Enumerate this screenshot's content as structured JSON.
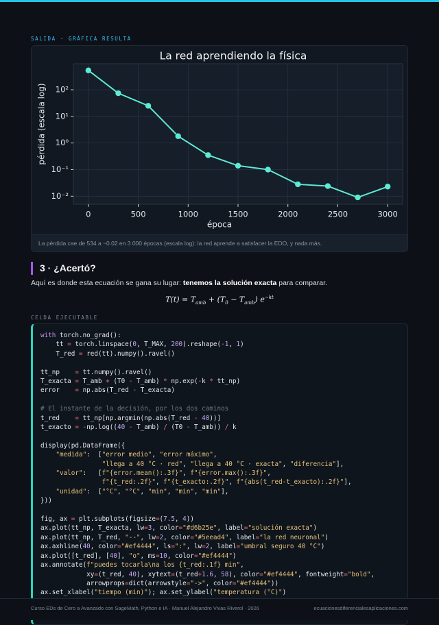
{
  "output": {
    "eyebrow": "SALIDA · GRÁFICA RESULTA",
    "caption": "La pérdida cae de 534 a ~0.02 en 3 000 épocas (escala log): la red aprende a satisfacer la EDO, y nada más."
  },
  "chart_data": {
    "type": "line",
    "title": "La red aprendiendo la física",
    "x_label": "época",
    "y_label": "pérdida (escala log)",
    "x": [
      0,
      300,
      600,
      900,
      1200,
      1500,
      1800,
      2100,
      2400,
      2700,
      3000
    ],
    "values": [
      534,
      74,
      25,
      1.8,
      0.35,
      0.14,
      0.1,
      0.028,
      0.024,
      0.009,
      0.023
    ],
    "color": "#5eead4",
    "y_scale": "log",
    "grid": true,
    "xlim": [
      -150,
      3150
    ],
    "xticks": [
      0,
      500,
      1000,
      1500,
      2000,
      2500,
      3000
    ],
    "ylim": [
      0.005,
      950
    ],
    "yticks": [
      {
        "value": 0.01,
        "label": "10⁻²"
      },
      {
        "value": 0.1,
        "label": "10⁻¹"
      },
      {
        "value": 1,
        "label": "10⁰"
      },
      {
        "value": 10,
        "label": "10¹"
      },
      {
        "value": 100,
        "label": "10²"
      }
    ]
  },
  "section": {
    "title": "3 · ¿Acertó?",
    "paragraph": [
      "Aquí es donde esta ecuación se gana su lugar: ",
      "tenemos la solución exacta",
      " para comparar."
    ],
    "equation": [
      "T(t) = T",
      "amb",
      " + (T",
      "0",
      " − T",
      "amb",
      ") e",
      "−kt"
    ]
  },
  "cell": {
    "label": "CELDA EJECUTABLE",
    "blocks": [
      [
        "with torch.no_grad():",
        "    tt = torch.linspace(0, T_MAX, 200).reshape(-1, 1)",
        "    T_red = red(tt).numpy().ravel()"
      ],
      [
        "tt_np    = tt.numpy().ravel()",
        "T_exacta = T_amb + (T0 - T_amb) * np.exp(-k * tt_np)",
        "error    = np.abs(T_red - T_exacta)"
      ],
      [
        "# El instante de la decisión, por los dos caminos",
        "t_red    = tt_np[np.argmin(np.abs(T_red - 40))]",
        "t_exacto = -np.log((40 - T_amb) / (T0 - T_amb)) / k"
      ],
      [
        "display(pd.DataFrame({",
        "    \"medida\":  [\"error medio\", \"error máximo\",",
        "                \"llega a 40 °C · red\", \"llega a 40 °C · exacta\", \"diferencia\"],",
        "    \"valor\":   [f\"{error.mean():.3f}\", f\"{error.max():.3f}\",",
        "                f\"{t_red:.2f}\", f\"{t_exacto:.2f}\", f\"{abs(t_red-t_exacto):.2f}\"],",
        "    \"unidad\":  [\"°C\", \"°C\", \"min\", \"min\", \"min\"],",
        "}))"
      ],
      [
        "fig, ax = plt.subplots(figsize=(7.5, 4))",
        "ax.plot(tt_np, T_exacta, lw=3, color=\"#d6b25e\", label=\"solución exacta\")",
        "ax.plot(tt_np, T_red, \"--\", lw=2, color=\"#5eead4\", label=\"la red neuronal\")",
        "ax.axhline(40, color=\"#ef4444\", ls=\":\", lw=2, label=\"umbral seguro 40 °C\")",
        "ax.plot([t_red], [40], \"o\", ms=10, color=\"#ef4444\")",
        "ax.annotate(f\"puedes tocarla\\na los {t_red:.1f} min\",",
        "            xy=(t_red, 40), xytext=(t_red+1.6, 58), color=\"#ef4444\", fontweight=\"bold\",",
        "            arrowprops=dict(arrowstyle=\"->\", color=\"#ef4444\"))",
        "ax.set_xlabel(\"tiempo (min)\"); ax.set_ylabel(\"temperatura (°C)\")"
      ]
    ]
  },
  "footer": {
    "left": "Curso EDs de Cero a Avanzado con SageMath, Python e IA · Manuel Alejandro Vivas Riverol · 2026",
    "right": "ecuacionesdiferencialesaplicaciones.com"
  }
}
